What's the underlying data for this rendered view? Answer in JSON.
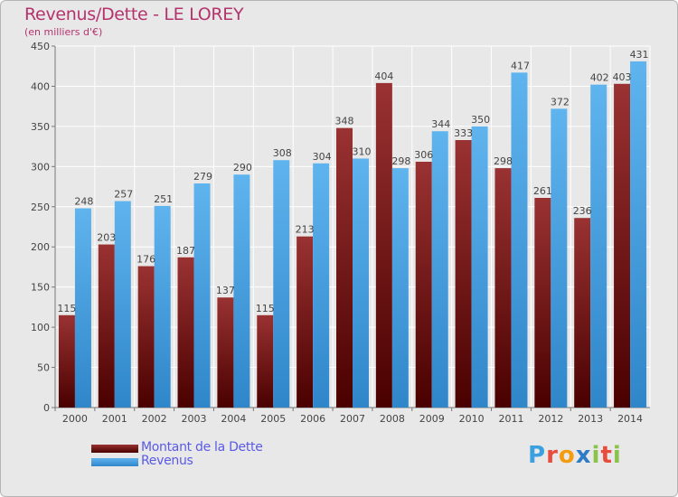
{
  "header": {
    "title": "Revenus/Dette - LE LOREY",
    "subtitle": "(en milliers d'€)"
  },
  "brand": {
    "text": "Proxiti",
    "letters": [
      {
        "ch": "P",
        "color": "#3aa0e0"
      },
      {
        "ch": "r",
        "color": "#e84c3d"
      },
      {
        "ch": "o",
        "color": "#f39c12"
      },
      {
        "ch": "x",
        "color": "#2e7bc6"
      },
      {
        "ch": "i",
        "color": "#8bc34a"
      },
      {
        "ch": "t",
        "color": "#e84c3d"
      },
      {
        "ch": "i",
        "color": "#8bc34a"
      }
    ]
  },
  "chart_data": {
    "type": "bar",
    "title": "Revenus/Dette - LE LOREY",
    "subtitle": "(en milliers d'€)",
    "categories": [
      "2000",
      "2001",
      "2002",
      "2003",
      "2004",
      "2005",
      "2006",
      "2007",
      "2008",
      "2009",
      "2010",
      "2011",
      "2012",
      "2013",
      "2014"
    ],
    "series": [
      {
        "name": "Montant de la Dette",
        "color": "#7b1a1a",
        "values": [
          115,
          203,
          176,
          187,
          137,
          115,
          213,
          348,
          404,
          306,
          333,
          298,
          261,
          236,
          403
        ]
      },
      {
        "name": "Revenus",
        "color": "#4aa3e3",
        "values": [
          248,
          257,
          251,
          279,
          290,
          308,
          304,
          310,
          298,
          344,
          350,
          417,
          372,
          402,
          431
        ]
      }
    ],
    "ylim": [
      0,
      450
    ],
    "yticks": [
      0,
      50,
      100,
      150,
      200,
      250,
      300,
      350,
      400,
      450
    ],
    "grid": true,
    "legend": "bottom-left"
  }
}
